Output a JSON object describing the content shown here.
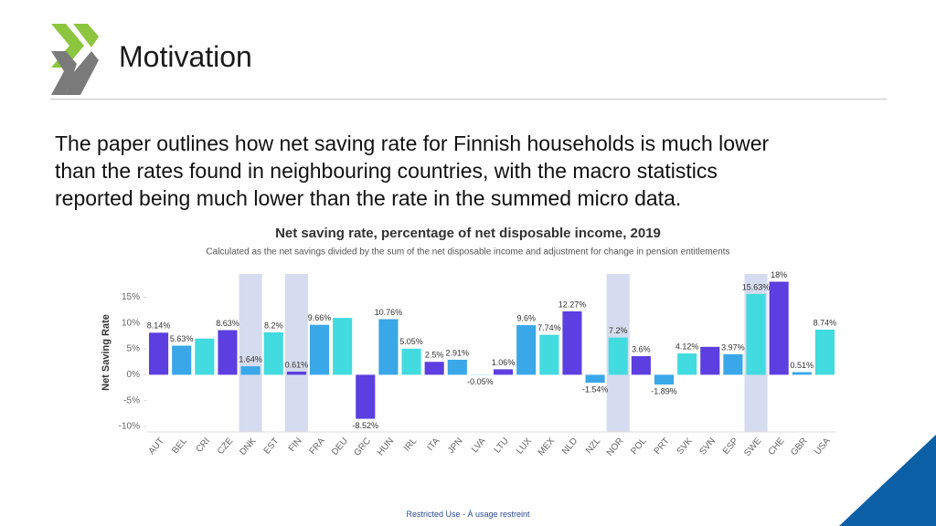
{
  "header": {
    "title": "Motivation"
  },
  "body": [
    "The paper outlines how net saving rate for Finnish households is much lower",
    "than the rates found in neighbouring countries, with the macro statistics",
    "reported being much lower than the rate in the summed micro data."
  ],
  "footer": "Restricted Use - À usage restreint",
  "chart_data": {
    "type": "bar",
    "title": "Net saving rate, percentage of net disposable income, 2019",
    "subtitle": "Calculated as the net savings divided by the sum of the net disposable income and adjustment for change in pension entitlements",
    "y_label": "Net Saving Rate",
    "categories": [
      "AUT",
      "BEL",
      "CRI",
      "CZE",
      "DNK",
      "EST",
      "FIN",
      "FRA",
      "DEU",
      "GRC",
      "HUN",
      "IRL",
      "ITA",
      "JPN",
      "LVA",
      "LTU",
      "LUX",
      "MEX",
      "NLD",
      "NZL",
      "NOR",
      "POL",
      "PRT",
      "SVK",
      "SVN",
      "ESP",
      "SWE",
      "CHE",
      "GBR",
      "USA"
    ],
    "values": [
      8.14,
      5.63,
      7.0,
      8.63,
      1.64,
      8.2,
      0.61,
      9.66,
      11.0,
      -8.52,
      10.76,
      5.05,
      2.5,
      2.91,
      -0.05,
      1.06,
      9.6,
      7.74,
      12.27,
      -1.54,
      7.2,
      3.6,
      -1.89,
      4.12,
      5.4,
      3.97,
      15.63,
      18,
      0.51,
      8.74
    ],
    "value_labels": [
      "8.14%",
      "5.63%",
      null,
      "8.63%",
      "1.64%",
      "8.2%",
      "0.61%",
      "9.66%",
      null,
      "-8.52%",
      "10.76%",
      "5.05%",
      "2.5%",
      "2.91%",
      "-0.05%",
      "1.06%",
      "9.6%",
      "7.74%",
      "12.27%",
      "-1.54%",
      "7.2%",
      "3.6%",
      "-1.89%",
      "4.12%",
      null,
      "3.97%",
      "15.63%",
      "18%",
      "0.51%",
      "8.74%"
    ],
    "colors": [
      "#5b3fe0",
      "#3aa7e8",
      "#41dbe0"
    ],
    "highlight_categories": [
      "DNK",
      "FIN",
      "NOR",
      "SWE"
    ],
    "highlight_color": "#d5dcef",
    "ylim": [
      -10,
      19.5
    ],
    "yticks": [
      {
        "value": -10,
        "label": "-10%"
      },
      {
        "value": -5,
        "label": "-5%"
      },
      {
        "value": 0,
        "label": "0%"
      },
      {
        "value": 5,
        "label": "5%"
      },
      {
        "value": 10,
        "label": "10%"
      },
      {
        "value": 15,
        "label": "15%"
      }
    ],
    "grid": false
  }
}
